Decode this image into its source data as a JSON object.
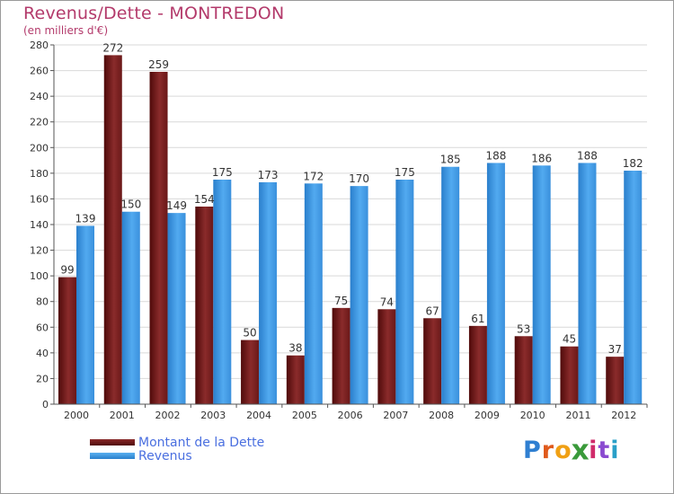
{
  "header": {
    "title": "Revenus/Dette - MONTREDON",
    "subtitle": "(en milliers d'€)"
  },
  "legend": {
    "items": [
      {
        "label": "Montant de la Dette"
      },
      {
        "label": "Revenus"
      }
    ]
  },
  "logo": {
    "text": "Proxiti",
    "letters": [
      "P",
      "r",
      "o",
      "x",
      "i",
      "t",
      "i"
    ],
    "letter_colors": [
      "#2f7fd1",
      "#e05a1c",
      "#f0a014",
      "#3a9a3a",
      "#d02a6a",
      "#8a4ad0",
      "#2aa0c8"
    ]
  },
  "chart_data": {
    "type": "bar",
    "title": "Revenus/Dette - MONTREDON",
    "subtitle": "(en milliers d'€)",
    "categories": [
      "2000",
      "2001",
      "2002",
      "2003",
      "2004",
      "2005",
      "2006",
      "2007",
      "2008",
      "2009",
      "2010",
      "2011",
      "2012"
    ],
    "series": [
      {
        "name": "Montant de la Dette",
        "color": "#7a1f1f",
        "values": [
          99,
          272,
          259,
          154,
          50,
          38,
          75,
          74,
          67,
          61,
          53,
          45,
          37
        ]
      },
      {
        "name": "Revenus",
        "color": "#3d97e0",
        "values": [
          139,
          150,
          149,
          175,
          173,
          172,
          170,
          175,
          185,
          188,
          186,
          188,
          182
        ]
      }
    ],
    "ylim": [
      0,
      280
    ],
    "yticks": [
      0,
      20,
      40,
      60,
      80,
      100,
      120,
      140,
      160,
      180,
      200,
      220,
      240,
      260,
      280
    ],
    "grid": true,
    "legend_position": "bottom-left"
  }
}
